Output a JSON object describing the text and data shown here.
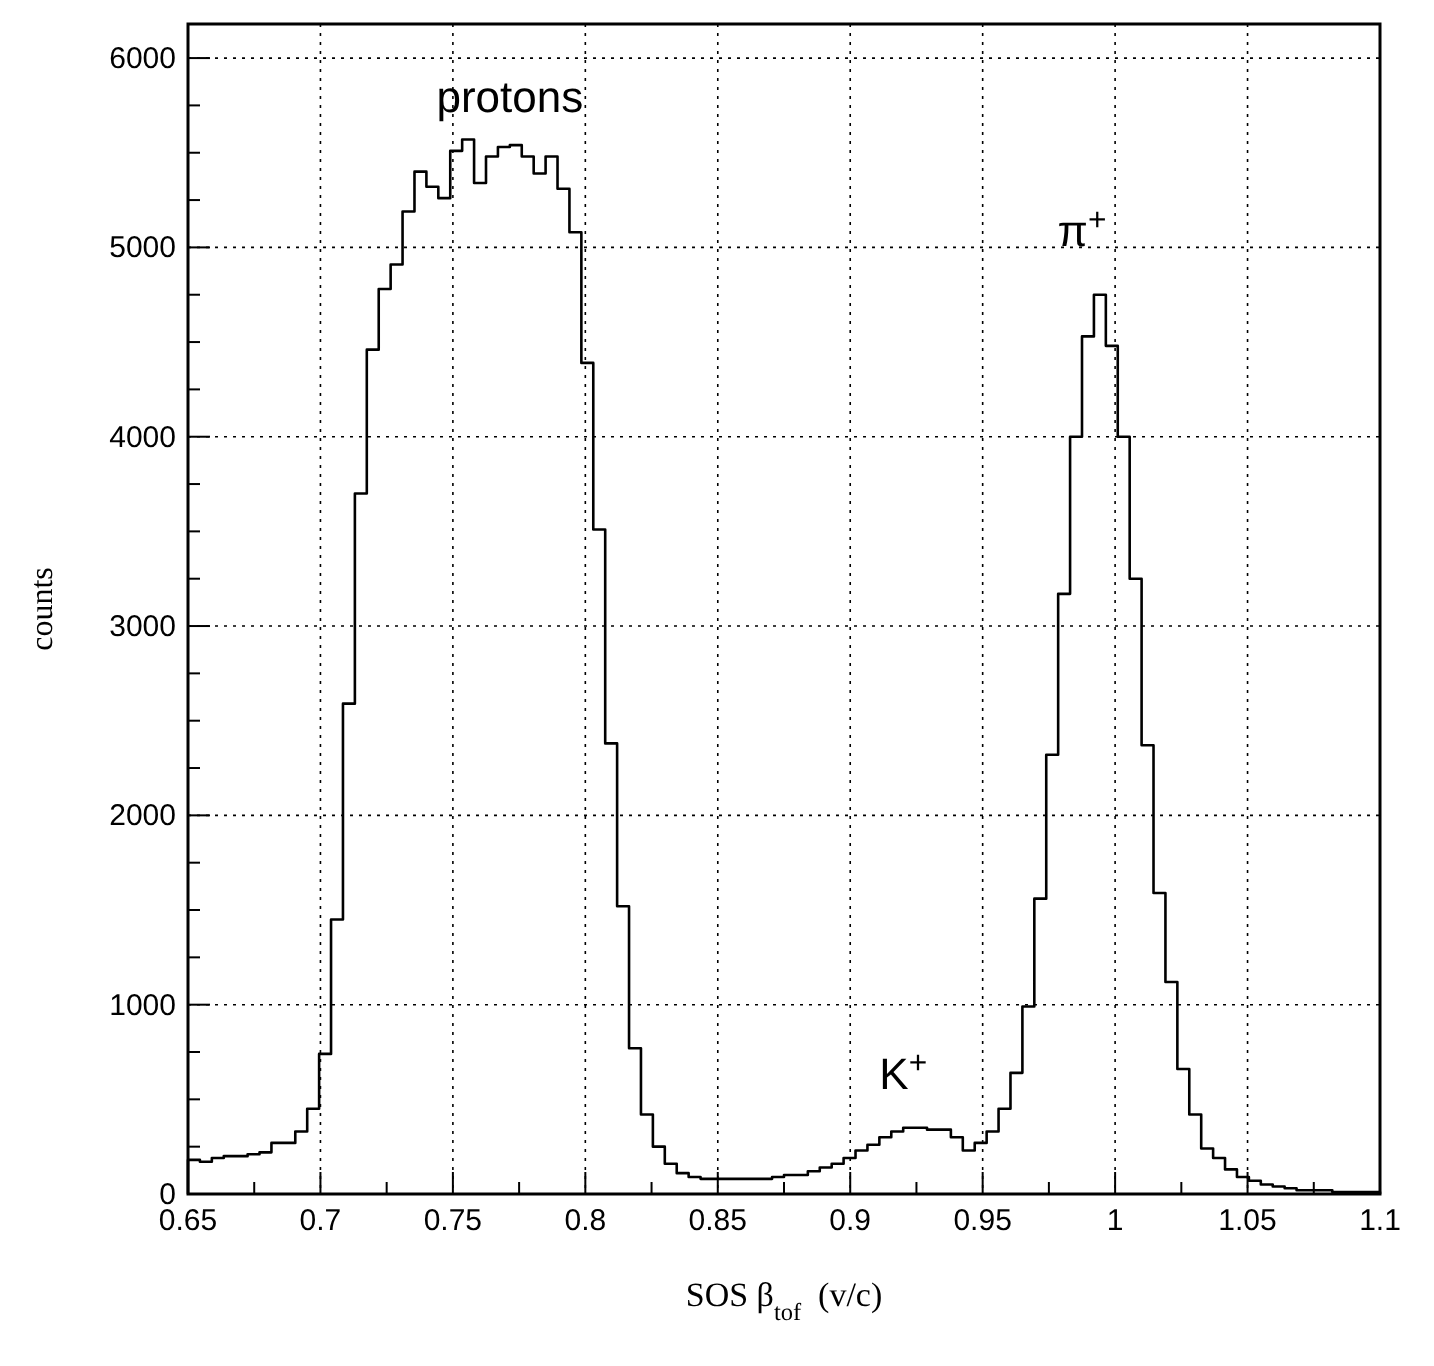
{
  "chart_data": {
    "type": "histogram",
    "xlabel": "SOS β$_{tof}$  (v/c)",
    "ylabel": "counts",
    "bins": [
      0.65,
      0.6545,
      0.659,
      0.6635,
      0.668,
      0.6725,
      0.677,
      0.6815,
      0.686,
      0.6905,
      0.695,
      0.6995,
      0.704,
      0.7085,
      0.713,
      0.7175,
      0.722,
      0.7265,
      0.731,
      0.7355,
      0.74,
      0.7445,
      0.749,
      0.7535,
      0.758,
      0.7625,
      0.767,
      0.7715,
      0.776,
      0.7805,
      0.785,
      0.7895,
      0.794,
      0.7985,
      0.803,
      0.8075,
      0.812,
      0.8165,
      0.821,
      0.8255,
      0.83,
      0.8345,
      0.839,
      0.8435,
      0.848,
      0.8525,
      0.857,
      0.8615,
      0.866,
      0.8705,
      0.875,
      0.8795,
      0.884,
      0.8885,
      0.893,
      0.8975,
      0.902,
      0.9065,
      0.911,
      0.9155,
      0.92,
      0.9245,
      0.929,
      0.9335,
      0.938,
      0.9425,
      0.947,
      0.9515,
      0.956,
      0.9605,
      0.965,
      0.9695,
      0.974,
      0.9785,
      0.983,
      0.9875,
      0.992,
      0.9965,
      1.001,
      1.0055,
      1.01,
      1.0145,
      1.019,
      1.0235,
      1.028,
      1.0325,
      1.037,
      1.0415,
      1.046,
      1.0505,
      1.055,
      1.0595,
      1.064,
      1.0685,
      1.073,
      1.0775,
      1.082,
      1.0865,
      1.091,
      1.0955,
      1.1
    ],
    "values": [
      180,
      170,
      190,
      200,
      200,
      210,
      220,
      270,
      270,
      330,
      450,
      740,
      1450,
      2590,
      3700,
      4460,
      4780,
      4910,
      5190,
      5400,
      5320,
      5260,
      5510,
      5570,
      5340,
      5480,
      5530,
      5540,
      5480,
      5390,
      5480,
      5310,
      5080,
      4390,
      3510,
      2380,
      1520,
      770,
      420,
      250,
      160,
      110,
      90,
      80,
      80,
      80,
      80,
      80,
      80,
      90,
      100,
      100,
      120,
      140,
      160,
      190,
      230,
      260,
      300,
      330,
      350,
      350,
      340,
      340,
      300,
      230,
      270,
      330,
      450,
      640,
      990,
      1560,
      2320,
      3170,
      4000,
      4530,
      4750,
      4480,
      4000,
      3250,
      2370,
      1590,
      1120,
      660,
      420,
      240,
      190,
      130,
      90,
      70,
      50,
      40,
      30,
      20,
      20,
      20,
      10,
      10,
      10,
      10
    ],
    "color": "#000000",
    "xlim": [
      0.65,
      1.1
    ],
    "ylim": [
      0,
      6180
    ],
    "xticks": [
      0.65,
      {
        "value": 0.675,
        "label": null
      },
      0.7,
      {
        "value": 0.725,
        "label": null
      },
      0.75,
      {
        "value": 0.775,
        "label": null
      },
      0.8,
      {
        "value": 0.825,
        "label": null
      },
      0.85,
      {
        "value": 0.875,
        "label": null
      },
      0.9,
      {
        "value": 0.925,
        "label": null
      },
      0.95,
      {
        "value": 0.975,
        "label": null
      },
      1,
      {
        "value": 1.025,
        "label": null
      },
      1.05,
      {
        "value": 1.075,
        "label": null
      },
      1.1
    ],
    "yticks": [
      0,
      {
        "value": 250,
        "label": null
      },
      {
        "value": 500,
        "label": null
      },
      {
        "value": 750,
        "label": null
      },
      1000,
      {
        "value": 1250,
        "label": null
      },
      {
        "value": 1500,
        "label": null
      },
      {
        "value": 1750,
        "label": null
      },
      2000,
      {
        "value": 2250,
        "label": null
      },
      {
        "value": 2500,
        "label": null
      },
      {
        "value": 2750,
        "label": null
      },
      3000,
      {
        "value": 3250,
        "label": null
      },
      {
        "value": 3500,
        "label": null
      },
      {
        "value": 3750,
        "label": null
      },
      4000,
      {
        "value": 4250,
        "label": null
      },
      {
        "value": 4500,
        "label": null
      },
      {
        "value": 4750,
        "label": null
      },
      5000,
      {
        "value": 5250,
        "label": null
      },
      {
        "value": 5500,
        "label": null
      },
      {
        "value": 5750,
        "label": null
      },
      6000
    ],
    "grid": true,
    "annotations": [
      "protons",
      "π$^{+}$",
      "K$^{+}$"
    ]
  }
}
